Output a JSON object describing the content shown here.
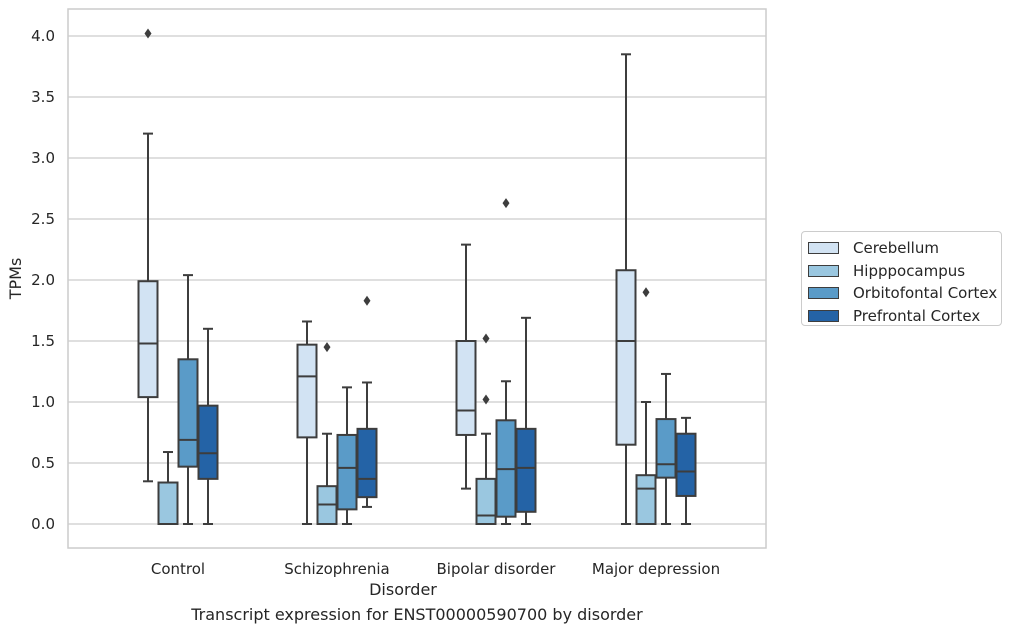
{
  "caption": "Transcript expression for ENST00000590700 by disorder",
  "chart_data": {
    "type": "box",
    "xlabel": "Disorder",
    "ylabel": "TPMs",
    "ylim": [
      -0.2,
      4.22
    ],
    "yticks": [
      "0.0",
      "0.5",
      "1.0",
      "1.5",
      "2.0",
      "2.5",
      "3.0",
      "3.5",
      "4.0"
    ],
    "ytick_values": [
      0,
      0.5,
      1.0,
      1.5,
      2.0,
      2.5,
      3.0,
      3.5,
      4.0
    ],
    "grid": "horizontal",
    "legend_position": "right-outside",
    "categories": [
      "Control",
      "Schizophrenia",
      "Bipolar disorder",
      "Major depression"
    ],
    "series": [
      {
        "name": "Cerebellum",
        "color": "#d2e3f3",
        "boxes": [
          {
            "min": 0.35,
            "q1": 1.04,
            "median": 1.48,
            "q3": 1.99,
            "max": 3.2,
            "outliers": [
              4.02
            ]
          },
          {
            "min": 0.0,
            "q1": 0.71,
            "median": 1.21,
            "q3": 1.47,
            "max": 1.66,
            "outliers": []
          },
          {
            "min": 0.29,
            "q1": 0.73,
            "median": 0.93,
            "q3": 1.5,
            "max": 2.29,
            "outliers": []
          },
          {
            "min": 0.0,
            "q1": 0.65,
            "median": 1.5,
            "q3": 2.08,
            "max": 3.85,
            "outliers": []
          }
        ]
      },
      {
        "name": "Hipppocampus",
        "color": "#9ac7e0",
        "boxes": [
          {
            "min": 0.0,
            "q1": 0.0,
            "median": 0.0,
            "q3": 0.34,
            "max": 0.59,
            "outliers": []
          },
          {
            "min": 0.0,
            "q1": 0.0,
            "median": 0.16,
            "q3": 0.31,
            "max": 0.74,
            "outliers": [
              1.45
            ]
          },
          {
            "min": 0.0,
            "q1": 0.0,
            "median": 0.07,
            "q3": 0.37,
            "max": 0.74,
            "outliers": [
              1.02,
              1.52
            ]
          },
          {
            "min": 0.0,
            "q1": 0.0,
            "median": 0.29,
            "q3": 0.4,
            "max": 1.0,
            "outliers": [
              1.9
            ]
          }
        ]
      },
      {
        "name": "Orbitofontal Cortex",
        "color": "#5a9bc8",
        "boxes": [
          {
            "min": 0.0,
            "q1": 0.47,
            "median": 0.69,
            "q3": 1.35,
            "max": 2.04,
            "outliers": []
          },
          {
            "min": 0.0,
            "q1": 0.12,
            "median": 0.46,
            "q3": 0.73,
            "max": 1.12,
            "outliers": []
          },
          {
            "min": 0.0,
            "q1": 0.06,
            "median": 0.45,
            "q3": 0.85,
            "max": 1.17,
            "outliers": [
              2.63
            ]
          },
          {
            "min": 0.0,
            "q1": 0.38,
            "median": 0.49,
            "q3": 0.86,
            "max": 1.23,
            "outliers": []
          }
        ]
      },
      {
        "name": "Prefrontal Cortex",
        "color": "#2463a6",
        "boxes": [
          {
            "min": 0.0,
            "q1": 0.37,
            "median": 0.58,
            "q3": 0.97,
            "max": 1.6,
            "outliers": []
          },
          {
            "min": 0.14,
            "q1": 0.22,
            "median": 0.37,
            "q3": 0.78,
            "max": 1.16,
            "outliers": [
              1.83
            ]
          },
          {
            "min": 0.0,
            "q1": 0.1,
            "median": 0.46,
            "q3": 0.78,
            "max": 1.69,
            "outliers": []
          },
          {
            "min": 0.0,
            "q1": 0.23,
            "median": 0.43,
            "q3": 0.74,
            "max": 0.87,
            "outliers": []
          }
        ]
      }
    ]
  },
  "legend": {
    "items": [
      {
        "label": "Cerebellum",
        "color": "#d2e3f3"
      },
      {
        "label": "Hipppocampus",
        "color": "#9ac7e0"
      },
      {
        "label": "Orbitofontal Cortex",
        "color": "#5a9bc8"
      },
      {
        "label": "Prefrontal Cortex",
        "color": "#2463a6"
      }
    ]
  }
}
